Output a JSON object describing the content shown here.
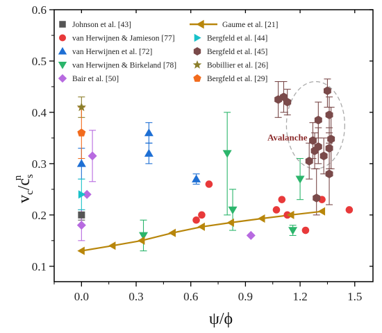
{
  "chart_data": {
    "type": "scatter",
    "xlabel": "ψ/ϕ",
    "ylabel_main": "v",
    "ylabel_sub1": "c",
    "ylabel_mid": "/c",
    "ylabel_sup": "n",
    "ylabel_sub2": "s",
    "xlim": [
      -0.15,
      1.6
    ],
    "ylim": [
      0.07,
      0.6
    ],
    "xticks": [
      0.0,
      0.3,
      0.6,
      0.9,
      1.2,
      1.5
    ],
    "xtick_labels": [
      "0.0",
      "0.3",
      "0.6",
      "0.9",
      "1.2",
      "1.5"
    ],
    "yticks": [
      0.1,
      0.2,
      0.3,
      0.4,
      0.5,
      0.6
    ],
    "ytick_labels": [
      "0.1",
      "0.2",
      "0.3",
      "0.4",
      "0.5",
      "0.6"
    ],
    "grid": false,
    "legend_position": "top",
    "annotation": {
      "text": "Avalanche",
      "x": 1.13,
      "y": 0.345,
      "color": "#8b2a2a"
    },
    "avalanche_ellipse": {
      "cx": 1.285,
      "cy": 0.375,
      "rx": 0.16,
      "ry": 0.085
    },
    "series": [
      {
        "name": "Johnson et al. [43]",
        "marker": "square",
        "color": "#555555",
        "points": [
          {
            "x": 0.0,
            "y": 0.2,
            "lo": 0.19,
            "hi": 0.21
          }
        ]
      },
      {
        "name": "van Herwijnen & Jamieson [77]",
        "marker": "circle",
        "color": "#e8393a",
        "points": [
          {
            "x": 0.63,
            "y": 0.19
          },
          {
            "x": 0.66,
            "y": 0.2
          },
          {
            "x": 0.7,
            "y": 0.26
          },
          {
            "x": 1.07,
            "y": 0.21
          },
          {
            "x": 1.1,
            "y": 0.23
          },
          {
            "x": 1.13,
            "y": 0.2
          },
          {
            "x": 1.23,
            "y": 0.17
          },
          {
            "x": 1.32,
            "y": 0.23
          },
          {
            "x": 1.47,
            "y": 0.21
          }
        ]
      },
      {
        "name": "van Herwijnen et al. [72]",
        "marker": "triangle-up",
        "color": "#1e6fd4",
        "points": [
          {
            "x": 0.0,
            "y": 0.3,
            "lo": 0.27,
            "hi": 0.33
          },
          {
            "x": 0.37,
            "y": 0.36,
            "lo": 0.34,
            "hi": 0.38
          },
          {
            "x": 0.37,
            "y": 0.32,
            "lo": 0.3,
            "hi": 0.34
          },
          {
            "x": 0.63,
            "y": 0.27,
            "lo": 0.26,
            "hi": 0.28
          }
        ]
      },
      {
        "name": "van Herwijnen & Birkeland [78]",
        "marker": "triangle-down",
        "color": "#2bb56b",
        "points": [
          {
            "x": 0.34,
            "y": 0.16,
            "lo": 0.13,
            "hi": 0.19
          },
          {
            "x": 0.8,
            "y": 0.32,
            "lo": 0.2,
            "hi": 0.4
          },
          {
            "x": 0.83,
            "y": 0.21,
            "lo": 0.17,
            "hi": 0.25
          },
          {
            "x": 1.16,
            "y": 0.17,
            "lo": 0.16,
            "hi": 0.18
          },
          {
            "x": 1.2,
            "y": 0.27,
            "lo": 0.23,
            "hi": 0.31
          }
        ]
      },
      {
        "name": "Bair et al. [50]",
        "marker": "diamond",
        "color": "#b76ae0",
        "points": [
          {
            "x": 0.0,
            "y": 0.18,
            "lo": 0.15,
            "hi": 0.21
          },
          {
            "x": 0.03,
            "y": 0.24
          },
          {
            "x": 0.06,
            "y": 0.315,
            "lo": 0.265,
            "hi": 0.365
          },
          {
            "x": 0.93,
            "y": 0.16
          }
        ]
      },
      {
        "name": "Gaume et al. [21]",
        "marker": "triangle-left",
        "color": "#b8860b",
        "line": true,
        "points": [
          {
            "x": 0.0,
            "y": 0.13
          },
          {
            "x": 0.17,
            "y": 0.14
          },
          {
            "x": 0.33,
            "y": 0.15
          },
          {
            "x": 0.5,
            "y": 0.165
          },
          {
            "x": 0.66,
            "y": 0.177
          },
          {
            "x": 0.82,
            "y": 0.185
          },
          {
            "x": 0.99,
            "y": 0.193
          },
          {
            "x": 1.15,
            "y": 0.2
          },
          {
            "x": 1.32,
            "y": 0.207
          }
        ]
      },
      {
        "name": "Bergfeld et al. [44]",
        "marker": "triangle-right",
        "color": "#19c1c9",
        "points": [
          {
            "x": 0.0,
            "y": 0.24,
            "lo": 0.21,
            "hi": 0.27
          }
        ]
      },
      {
        "name": "Bergfeld et al. [45]",
        "marker": "hexagon",
        "color": "#7a4a4a",
        "points": [
          {
            "x": 1.08,
            "y": 0.425,
            "lo": 0.39,
            "hi": 0.46
          },
          {
            "x": 1.11,
            "y": 0.43,
            "lo": 0.4,
            "hi": 0.46
          },
          {
            "x": 1.13,
            "y": 0.42,
            "lo": 0.395,
            "hi": 0.445
          },
          {
            "x": 1.25,
            "y": 0.305,
            "lo": 0.27,
            "hi": 0.34
          },
          {
            "x": 1.27,
            "y": 0.345,
            "lo": 0.31,
            "hi": 0.38
          },
          {
            "x": 1.28,
            "y": 0.325,
            "lo": 0.29,
            "hi": 0.36
          },
          {
            "x": 1.29,
            "y": 0.233,
            "lo": 0.2,
            "hi": 0.29
          },
          {
            "x": 1.3,
            "y": 0.333,
            "lo": 0.3,
            "hi": 0.37
          },
          {
            "x": 1.3,
            "y": 0.385,
            "lo": 0.35,
            "hi": 0.42
          },
          {
            "x": 1.33,
            "y": 0.315,
            "lo": 0.28,
            "hi": 0.35
          },
          {
            "x": 1.35,
            "y": 0.442,
            "lo": 0.41,
            "hi": 0.465
          },
          {
            "x": 1.36,
            "y": 0.395,
            "lo": 0.36,
            "hi": 0.43
          },
          {
            "x": 1.36,
            "y": 0.33,
            "lo": 0.29,
            "hi": 0.37
          },
          {
            "x": 1.37,
            "y": 0.348,
            "lo": 0.29,
            "hi": 0.41
          },
          {
            "x": 1.36,
            "y": 0.28,
            "lo": 0.22,
            "hi": 0.34
          }
        ]
      },
      {
        "name": "Bobillier et al. [26]",
        "marker": "star",
        "color": "#8c7f2b",
        "points": [
          {
            "x": 0.0,
            "y": 0.41,
            "lo": 0.39,
            "hi": 0.43
          }
        ]
      },
      {
        "name": "Bergfeld et al. [29]",
        "marker": "pentagon",
        "color": "#f26b1d",
        "points": [
          {
            "x": 0.0,
            "y": 0.36,
            "lo": 0.31,
            "hi": 0.41
          }
        ]
      }
    ],
    "legend_order": [
      0,
      5,
      1,
      6,
      2,
      7,
      3,
      8,
      4,
      9
    ]
  }
}
